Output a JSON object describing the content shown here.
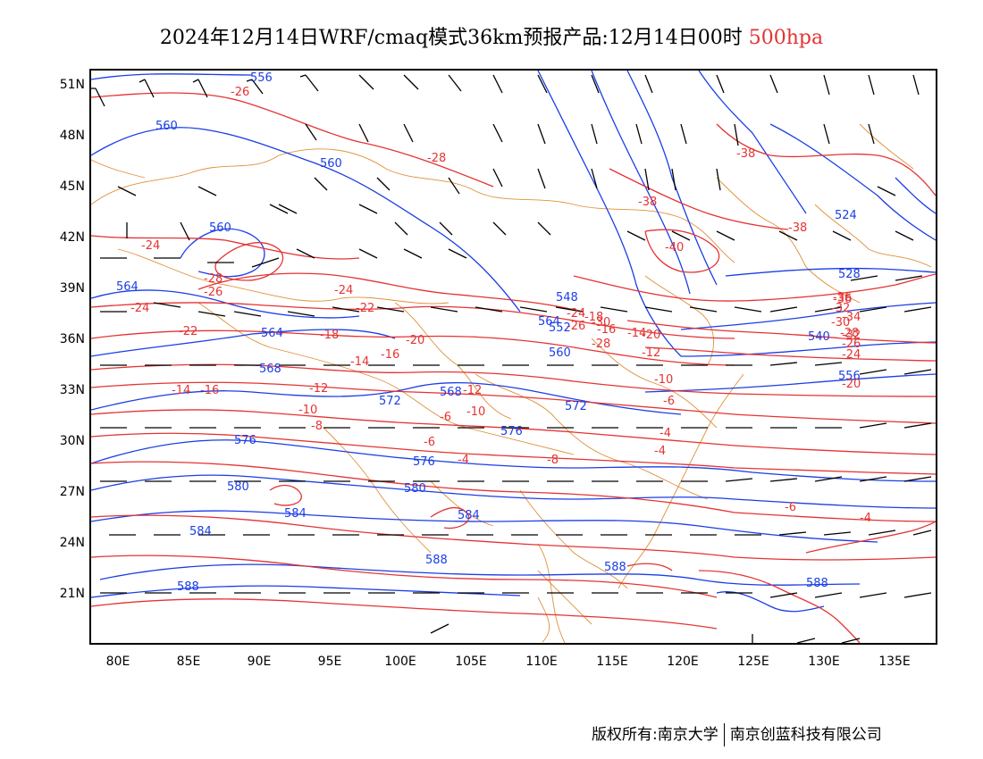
{
  "title": {
    "main": "2024年12月14日WRF/cmaq模式36km预报产品:12月14日00时",
    "level": "500hpa",
    "level_color": "#e53333"
  },
  "lat_ticks": [
    "51N",
    "48N",
    "45N",
    "42N",
    "39N",
    "36N",
    "33N",
    "30N",
    "27N",
    "24N",
    "21N"
  ],
  "lon_ticks": [
    "80E",
    "85E",
    "90E",
    "95E",
    "100E",
    "105E",
    "110E",
    "115E",
    "120E",
    "125E",
    "130E",
    "135E"
  ],
  "copyright": {
    "left": "版权所有:南京大学",
    "right": "南京创蓝科技有限公司"
  },
  "colors": {
    "height_contour": "#1a3ee6",
    "temperature_contour": "#e53333",
    "boundary": "#e0903a",
    "wind_barb": "#000000"
  },
  "height_labels": [
    "556",
    "560",
    "560",
    "560",
    "564",
    "564",
    "564",
    "568",
    "568",
    "572",
    "572",
    "576",
    "576",
    "576",
    "580",
    "580",
    "584",
    "584",
    "584",
    "588",
    "588",
    "588",
    "588",
    "524",
    "528",
    "540",
    "548",
    "552",
    "556",
    "560"
  ],
  "temperature_labels": [
    "-26",
    "-28",
    "-24",
    "-28",
    "-26",
    "-24",
    "-24",
    "-22",
    "-22",
    "-18",
    "-20",
    "-16",
    "-14",
    "-14",
    "-16",
    "-12",
    "-10",
    "-8",
    "-6",
    "-12",
    "-10",
    "-8",
    "-6",
    "-4",
    "-6",
    "-4",
    "-4",
    "-4",
    "-6",
    "-10",
    "-12",
    "-14",
    "-16",
    "-18",
    "-20",
    "-24",
    "-26",
    "-28",
    "-30",
    "-32",
    "-34",
    "-36",
    "-38",
    "-38",
    "-40",
    "-38",
    "-20",
    "-24",
    "-26",
    "-28",
    "-30",
    "-32",
    "-36"
  ]
}
